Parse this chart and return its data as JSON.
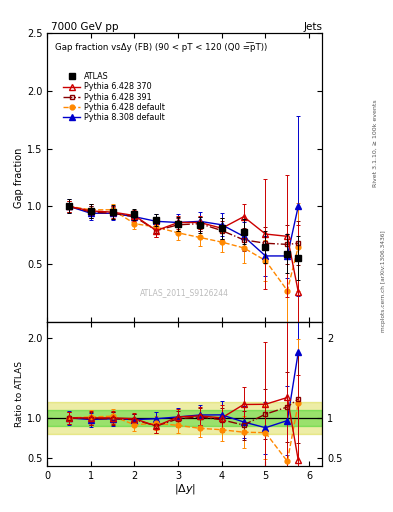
{
  "title_top": "7000 GeV pp",
  "title_right": "Jets",
  "plot_title": "Gap fraction vsΔy (FB) (90 < pT < 120 (Q0 =͞pT))",
  "ylabel_main": "Gap fraction",
  "ylabel_ratio": "Ratio to ATLAS",
  "watermark": "ATLAS_2011_S9126244",
  "right_label_top": "Rivet 3.1.10, ≥ 100k events",
  "right_label_bot": "mcplots.cern.ch [arXiv:1306.3436]",
  "atlas_x": [
    0.5,
    1.0,
    1.5,
    2.0,
    2.5,
    3.0,
    3.5,
    4.0,
    4.5,
    5.0,
    5.5,
    5.75
  ],
  "atlas_y": [
    1.0,
    0.96,
    0.95,
    0.93,
    0.88,
    0.85,
    0.84,
    0.81,
    0.78,
    0.65,
    0.59,
    0.55
  ],
  "atlas_yerr": [
    0.06,
    0.06,
    0.06,
    0.05,
    0.05,
    0.06,
    0.07,
    0.09,
    0.11,
    0.14,
    0.17,
    0.19
  ],
  "py6_370_x": [
    0.5,
    1.0,
    1.5,
    2.0,
    2.5,
    3.0,
    3.5,
    4.0,
    4.5,
    5.0,
    5.5,
    5.75
  ],
  "py6_370_y": [
    1.0,
    0.96,
    0.95,
    0.92,
    0.79,
    0.86,
    0.86,
    0.81,
    0.91,
    0.76,
    0.74,
    0.26
  ],
  "py6_370_yerr": [
    0.05,
    0.06,
    0.05,
    0.05,
    0.06,
    0.06,
    0.06,
    0.09,
    0.11,
    0.48,
    0.53,
    0.58
  ],
  "py6_391_x": [
    0.5,
    1.0,
    1.5,
    2.0,
    2.5,
    3.0,
    3.5,
    4.0,
    4.5,
    5.0,
    5.5,
    5.75
  ],
  "py6_391_y": [
    1.0,
    0.95,
    0.94,
    0.91,
    0.79,
    0.84,
    0.85,
    0.79,
    0.71,
    0.68,
    0.67,
    0.68
  ],
  "py6_391_yerr": [
    0.05,
    0.05,
    0.05,
    0.05,
    0.06,
    0.06,
    0.06,
    0.08,
    0.1,
    0.14,
    0.17,
    0.19
  ],
  "py6_def_x": [
    0.5,
    1.0,
    1.5,
    2.0,
    2.5,
    3.0,
    3.5,
    4.0,
    4.5,
    5.0,
    5.5,
    5.75
  ],
  "py6_def_y": [
    1.0,
    0.97,
    0.97,
    0.85,
    0.82,
    0.77,
    0.73,
    0.69,
    0.64,
    0.53,
    0.27,
    0.65
  ],
  "py6_def_yerr": [
    0.05,
    0.05,
    0.05,
    0.05,
    0.06,
    0.06,
    0.07,
    0.09,
    0.13,
    0.18,
    0.28,
    0.38
  ],
  "py8_def_x": [
    0.5,
    1.0,
    1.5,
    2.0,
    2.5,
    3.0,
    3.5,
    4.0,
    4.5,
    5.0,
    5.5,
    5.75
  ],
  "py8_def_y": [
    1.0,
    0.94,
    0.94,
    0.91,
    0.87,
    0.86,
    0.87,
    0.84,
    0.74,
    0.57,
    0.57,
    1.0
  ],
  "py8_def_yerr": [
    0.06,
    0.06,
    0.06,
    0.05,
    0.06,
    0.07,
    0.08,
    0.1,
    0.12,
    0.17,
    0.19,
    0.78
  ],
  "colors": {
    "atlas": "#000000",
    "py6_370": "#cc0000",
    "py6_391": "#880000",
    "py6_def": "#ff8800",
    "py8_def": "#0000cc"
  },
  "band_green": [
    0.9,
    1.1
  ],
  "band_yellow": [
    0.8,
    1.2
  ],
  "band_color_green": "#00cc00",
  "band_color_yellow": "#cccc00",
  "band_alpha": 0.35,
  "xlim": [
    0.0,
    6.3
  ],
  "ylim_main": [
    0.0,
    2.5
  ],
  "ylim_ratio": [
    0.4,
    2.2
  ],
  "main_yticks": [
    0.5,
    1.0,
    1.5,
    2.0,
    2.5
  ],
  "ratio_yticks": [
    0.5,
    1.0,
    2.0
  ]
}
